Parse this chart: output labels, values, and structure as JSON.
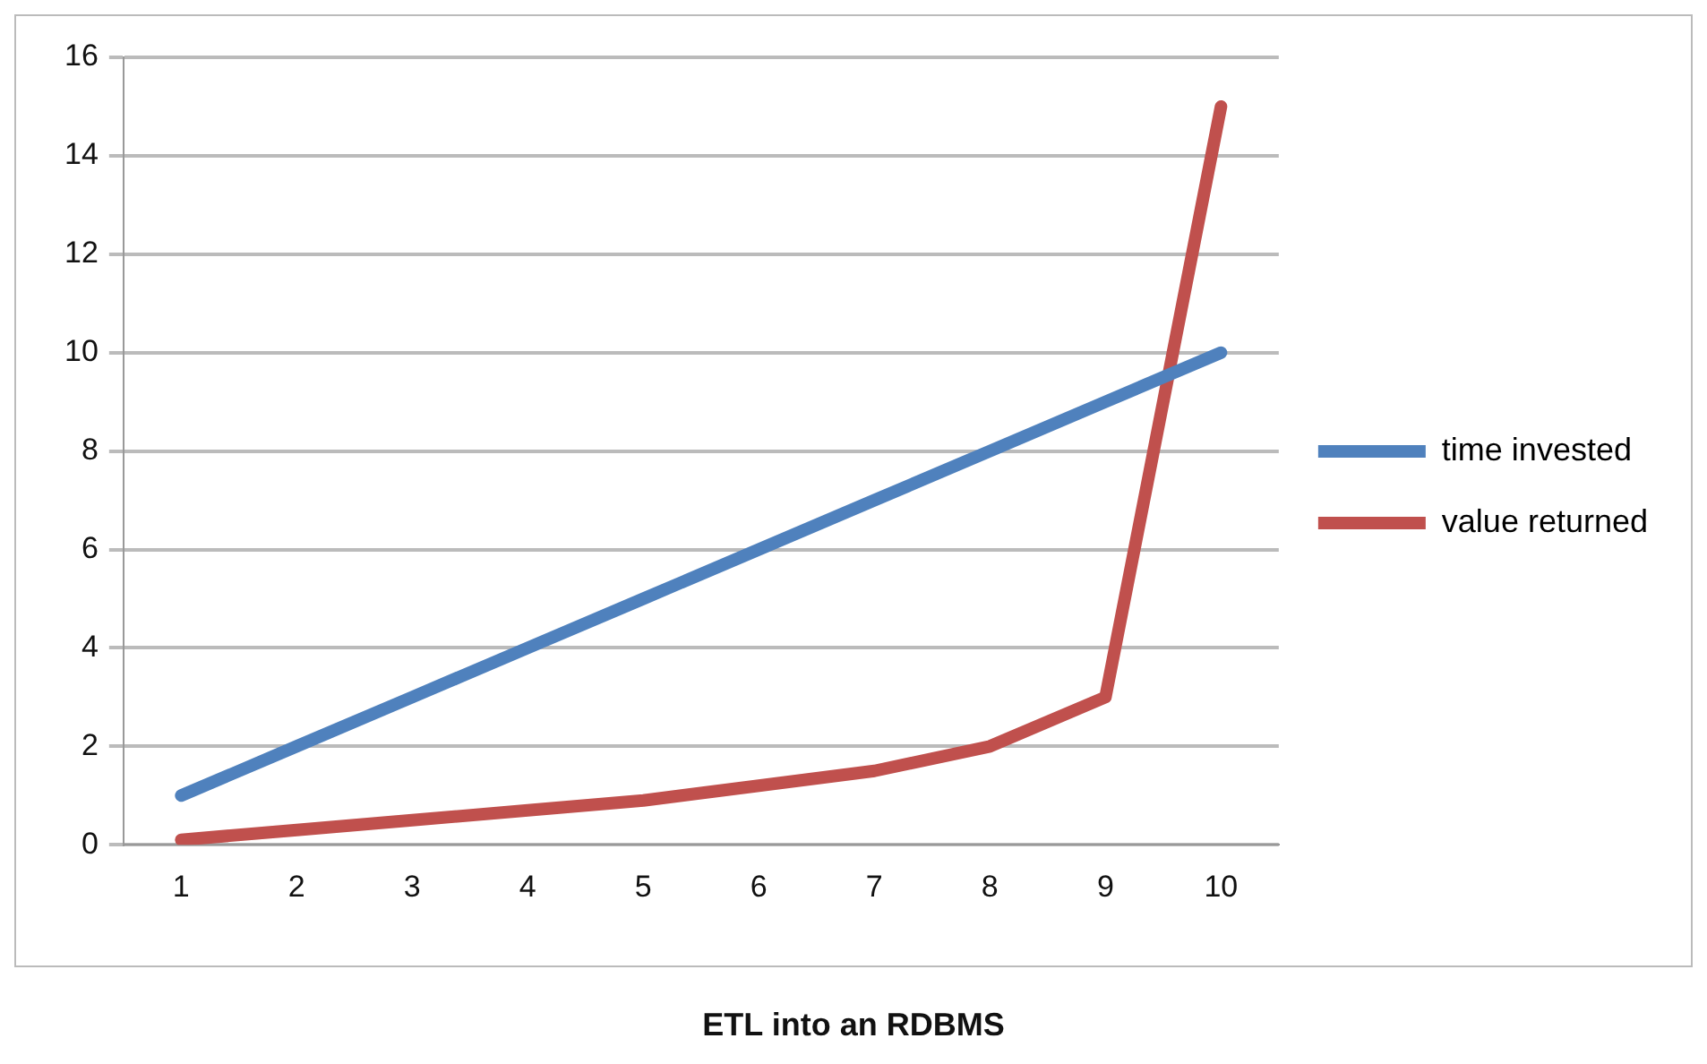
{
  "chart_data": {
    "type": "line",
    "title": "ETL into an RDBMS",
    "categories": [
      "1",
      "2",
      "3",
      "4",
      "5",
      "6",
      "7",
      "8",
      "9",
      "10"
    ],
    "series": [
      {
        "name": "time invested",
        "color": "#4f81bd",
        "values": [
          1,
          2,
          3,
          4,
          5,
          6,
          7,
          8,
          9,
          10
        ]
      },
      {
        "name": "value returned",
        "color": "#c0504d",
        "values": [
          0.1,
          0.3,
          0.5,
          0.7,
          0.9,
          1.2,
          1.5,
          2,
          3,
          15
        ]
      }
    ],
    "ylim": [
      0,
      16
    ],
    "yticks": [
      0,
      2,
      4,
      6,
      8,
      10,
      12,
      14,
      16
    ],
    "grid": "y",
    "legend": "right",
    "marker": "none",
    "line_style": "solid"
  }
}
